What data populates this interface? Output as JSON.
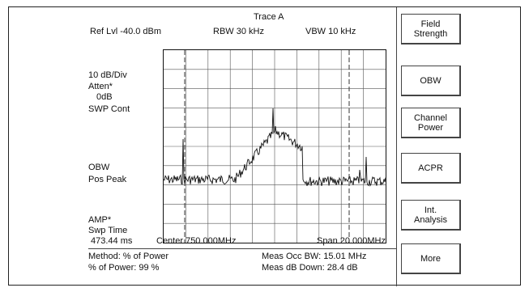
{
  "header": {
    "trace_title": "Trace A",
    "ref_level": "Ref Lvl -40.0 dBm",
    "rbw": "RBW  30 kHz",
    "vbw": "VBW  10 kHz"
  },
  "left_panel": {
    "scale": "10 dB/Div",
    "atten": "Atten*",
    "atten_value": "0dB",
    "sweep_mode": "SWP Cont",
    "obw_label": "OBW",
    "detector": "Pos Peak",
    "amp_label": "AMP*",
    "swp_time_label": "Swp Time",
    "swp_time_value": "473.44 ms"
  },
  "axis": {
    "center": "Center  750.000MHz",
    "span": "Span  20.000MHz"
  },
  "footer": {
    "method": "Method: % of Power",
    "pct_power": "% of Power: 99 %",
    "occ_bw": "Meas Occ BW: 15.01 MHz",
    "db_down": "Meas dB Down: 28.4 dB"
  },
  "softkeys": [
    {
      "label": "Field\nStrength"
    },
    {
      "label": "OBW"
    },
    {
      "label": "Channel\nPower"
    },
    {
      "label": "ACPR"
    },
    {
      "label": "Int.\nAnalysis"
    },
    {
      "label": "More"
    }
  ],
  "trace": {
    "color": "#111111",
    "grid_color": "#555555",
    "marker_color": "#333333"
  }
}
